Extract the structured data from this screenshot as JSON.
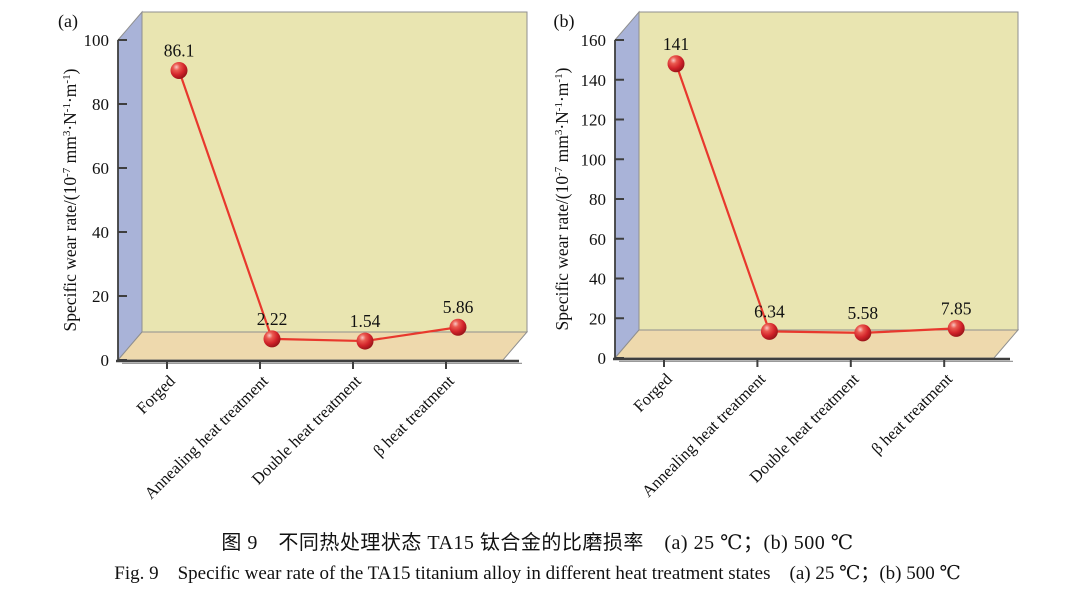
{
  "figure": {
    "caption_zh": "图 9　不同热处理状态 TA15 钛合金的比磨损率　(a) 25 ℃；(b) 500 ℃",
    "caption_en": "Fig. 9　Specific wear rate of the TA15 titanium alloy in different heat treatment states　(a) 25 ℃；(b) 500 ℃"
  },
  "colors": {
    "back_wall": "#e9e5b1",
    "side_wall": "#a9b3d8",
    "floor": "#eed9ad",
    "outline": "#8f8f8f",
    "axis": "#3e3e3e",
    "axis_shadow": "#9a9a9a",
    "line": "#e8382d",
    "marker_light": "#f9c8c4",
    "marker_hi": "#ea5a50",
    "marker_mid": "#d2232a",
    "marker_dark": "#8c1015",
    "text": "#111111"
  },
  "chart_data": [
    {
      "type": "line",
      "panel_label": "(a)",
      "categories": [
        "Forged",
        "Annealing heat treatment",
        "Double heat treatment",
        "β heat treatment"
      ],
      "values": [
        86.1,
        2.22,
        1.54,
        5.86
      ],
      "value_labels": [
        "86.1",
        "2.22",
        "1.54",
        "5.86"
      ],
      "ylabel": "Specific wear rate/(10⁻⁷ mm³·N⁻¹·m⁻¹)",
      "ylabel_parts": [
        {
          "t": "Specific wear rate/(10"
        },
        {
          "t": "-7",
          "sup": true
        },
        {
          "t": " mm"
        },
        {
          "t": "3",
          "sup": true
        },
        {
          "t": "·N"
        },
        {
          "t": "-1",
          "sup": true
        },
        {
          "t": "·m"
        },
        {
          "t": "-1",
          "sup": true
        },
        {
          "t": ")"
        }
      ],
      "ylim": [
        0,
        100
      ],
      "yticks": [
        0,
        20,
        40,
        60,
        80,
        100
      ],
      "grid": false,
      "legend": null
    },
    {
      "type": "line",
      "panel_label": "(b)",
      "categories": [
        "Forged",
        "Annealing heat treatment",
        "Double heat treatment",
        "β heat treatment"
      ],
      "values": [
        141,
        6.34,
        5.58,
        7.85
      ],
      "value_labels": [
        "141",
        "6.34",
        "5.58",
        "7.85"
      ],
      "ylabel": "Specific wear rate/(10⁻⁷ mm³·N⁻¹·m⁻¹)",
      "ylabel_parts": [
        {
          "t": "Specific wear rate/(10"
        },
        {
          "t": "-7",
          "sup": true
        },
        {
          "t": " mm"
        },
        {
          "t": "3",
          "sup": true
        },
        {
          "t": "·N"
        },
        {
          "t": "-1",
          "sup": true
        },
        {
          "t": "·m"
        },
        {
          "t": "-1",
          "sup": true
        },
        {
          "t": ")"
        }
      ],
      "ylim": [
        0,
        160
      ],
      "yticks": [
        0,
        20,
        40,
        60,
        80,
        100,
        120,
        140,
        160
      ],
      "grid": false,
      "legend": null
    }
  ]
}
